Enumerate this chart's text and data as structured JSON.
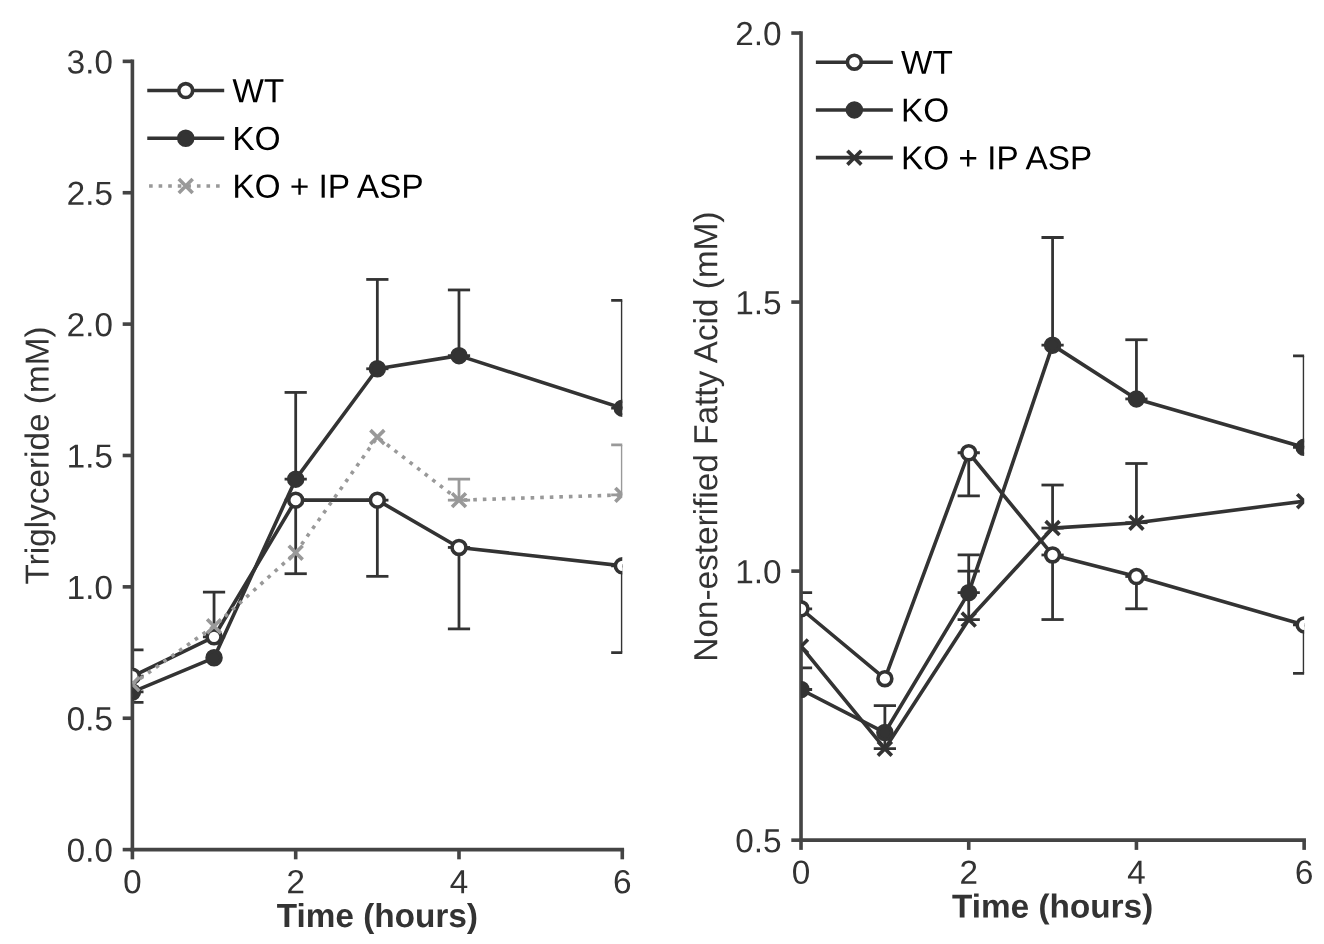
{
  "chart_data": [
    {
      "type": "line",
      "xlabel": "Time (hours)",
      "ylabel": "Triglyceride (mM)",
      "x": [
        0,
        1,
        2,
        3,
        4,
        6
      ],
      "xlim": [
        0,
        6
      ],
      "xticks": [
        0,
        2,
        4,
        6
      ],
      "ylim": [
        0,
        3.0
      ],
      "yticks": [
        {
          "value": 0,
          "label": "0.0"
        },
        0.5,
        {
          "value": 1,
          "label": "1.0"
        },
        1.5,
        {
          "value": 2,
          "label": "2.0"
        },
        2.5,
        {
          "value": 3,
          "label": "3.0"
        }
      ],
      "grid": false,
      "legend": "top left",
      "series": [
        {
          "name": "WT",
          "color": "#333333",
          "marker": "circle",
          "line_style": "solid",
          "values": [
            0.66,
            0.81,
            1.33,
            1.33,
            1.15,
            1.08
          ],
          "errors": [
            [
              0.66,
              0.76
            ],
            [
              0.81,
              0.98
            ],
            [
              1.05,
              1.33
            ],
            [
              1.04,
              1.33
            ],
            [
              0.84,
              1.15
            ],
            [
              0.75,
              1.08
            ]
          ]
        },
        {
          "name": "KO",
          "color": "#333333",
          "marker": "circle",
          "line_style": "solid",
          "values": [
            0.6,
            0.73,
            1.41,
            1.83,
            1.88,
            1.68
          ],
          "errors": [
            [
              0.56,
              0.6
            ],
            null,
            [
              1.41,
              1.74
            ],
            [
              1.83,
              2.17
            ],
            [
              1.88,
              2.13
            ],
            [
              1.68,
              2.09
            ]
          ]
        },
        {
          "name": "KO + IP ASP",
          "color": "#999999",
          "marker": "cross",
          "line_style": "dotted",
          "values": [
            0.63,
            0.85,
            1.13,
            1.57,
            1.33,
            1.35
          ],
          "errors": [
            null,
            null,
            null,
            null,
            [
              1.33,
              1.41
            ],
            [
              1.35,
              1.54
            ]
          ]
        }
      ]
    },
    {
      "type": "line",
      "xlabel": "Time (hours)",
      "ylabel": "Non-esterified Fatty Acid (mM)",
      "x": [
        0,
        1,
        2,
        3,
        4,
        6
      ],
      "xlim": [
        0,
        6
      ],
      "xticks": [
        0,
        2,
        4,
        6
      ],
      "ylim": [
        0.5,
        2.0
      ],
      "yticks": [
        0.5,
        {
          "value": 1,
          "label": "1.0"
        },
        1.5,
        {
          "value": 2,
          "label": "2.0"
        }
      ],
      "grid": false,
      "legend": "top left",
      "series": [
        {
          "name": "WT",
          "color": "#333333",
          "marker": "circle",
          "line_style": "solid",
          "values": [
            0.93,
            0.8,
            1.22,
            1.03,
            0.99,
            0.9
          ],
          "errors": [
            [
              0.93,
              0.96
            ],
            null,
            [
              1.14,
              1.22
            ],
            [
              0.91,
              1.03
            ],
            [
              0.93,
              0.99
            ],
            [
              0.81,
              0.9
            ]
          ]
        },
        {
          "name": "KO",
          "color": "#333333",
          "marker": "circle",
          "line_style": "solid",
          "values": [
            0.78,
            0.7,
            0.96,
            1.42,
            1.32,
            1.23
          ],
          "errors": [
            [
              0.78,
              0.82
            ],
            null,
            [
              0.96,
              1.03
            ],
            [
              1.42,
              1.62
            ],
            [
              1.32,
              1.43
            ],
            [
              1.23,
              1.4
            ]
          ]
        },
        {
          "name": "KO + IP ASP",
          "color": "#333333",
          "marker": "cross",
          "line_style": "solid",
          "values": [
            0.86,
            0.67,
            0.91,
            1.08,
            1.09,
            1.13
          ],
          "errors": [
            null,
            [
              0.67,
              0.75
            ],
            [
              0.91,
              1.0
            ],
            [
              1.08,
              1.16
            ],
            [
              1.09,
              1.2
            ],
            null
          ]
        }
      ]
    }
  ]
}
